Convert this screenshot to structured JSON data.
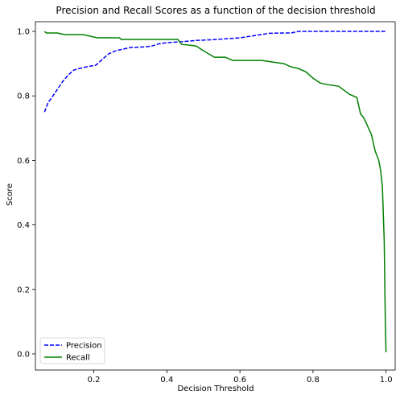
{
  "chart_data": {
    "type": "line",
    "title": "Precision and Recall Scores as a function of the decision threshold",
    "xlabel": "Decision Threshold",
    "ylabel": "Score",
    "xlim": [
      0.04,
      1.025
    ],
    "ylim": [
      -0.05,
      1.03
    ],
    "xticks": [
      0.2,
      0.4,
      0.6,
      0.8,
      1.0
    ],
    "xtick_labels": [
      "0.2",
      "0.4",
      "0.6",
      "0.8",
      "1.0"
    ],
    "yticks": [
      0.0,
      0.2,
      0.4,
      0.6,
      0.8,
      1.0
    ],
    "ytick_labels": [
      "0.0",
      "0.2",
      "0.4",
      "0.6",
      "0.8",
      "1.0"
    ],
    "grid": false,
    "legend_position": "lower-left",
    "series": [
      {
        "name": "Precision",
        "color": "#0000ff",
        "style": "dashed",
        "x": [
          0.065,
          0.075,
          0.085,
          0.1,
          0.115,
          0.13,
          0.145,
          0.16,
          0.18,
          0.205,
          0.22,
          0.24,
          0.26,
          0.28,
          0.3,
          0.34,
          0.36,
          0.38,
          0.4,
          0.44,
          0.48,
          0.52,
          0.56,
          0.6,
          0.64,
          0.68,
          0.72,
          0.74,
          0.76,
          0.8,
          0.9,
          1.0
        ],
        "y": [
          0.75,
          0.78,
          0.795,
          0.82,
          0.845,
          0.865,
          0.88,
          0.885,
          0.89,
          0.895,
          0.91,
          0.93,
          0.94,
          0.945,
          0.95,
          0.952,
          0.955,
          0.962,
          0.965,
          0.968,
          0.972,
          0.974,
          0.977,
          0.98,
          0.987,
          0.994,
          0.995,
          0.995,
          1.0,
          1.0,
          1.0,
          1.0
        ]
      },
      {
        "name": "Recall",
        "color": "#008000",
        "style": "solid",
        "x": [
          0.065,
          0.07,
          0.1,
          0.12,
          0.17,
          0.19,
          0.21,
          0.27,
          0.275,
          0.3,
          0.43,
          0.44,
          0.48,
          0.5,
          0.53,
          0.56,
          0.58,
          0.6,
          0.66,
          0.69,
          0.72,
          0.74,
          0.76,
          0.78,
          0.8,
          0.82,
          0.84,
          0.87,
          0.9,
          0.92,
          0.93,
          0.94,
          0.95,
          0.96,
          0.97,
          0.98,
          0.985,
          0.99,
          0.995,
          0.998,
          1.0
        ],
        "y": [
          1.0,
          0.995,
          0.995,
          0.99,
          0.99,
          0.985,
          0.98,
          0.98,
          0.975,
          0.975,
          0.975,
          0.96,
          0.955,
          0.94,
          0.92,
          0.92,
          0.91,
          0.91,
          0.91,
          0.905,
          0.9,
          0.89,
          0.885,
          0.875,
          0.855,
          0.84,
          0.835,
          0.83,
          0.805,
          0.795,
          0.745,
          0.73,
          0.705,
          0.68,
          0.63,
          0.6,
          0.57,
          0.52,
          0.35,
          0.1,
          0.005
        ]
      }
    ]
  }
}
